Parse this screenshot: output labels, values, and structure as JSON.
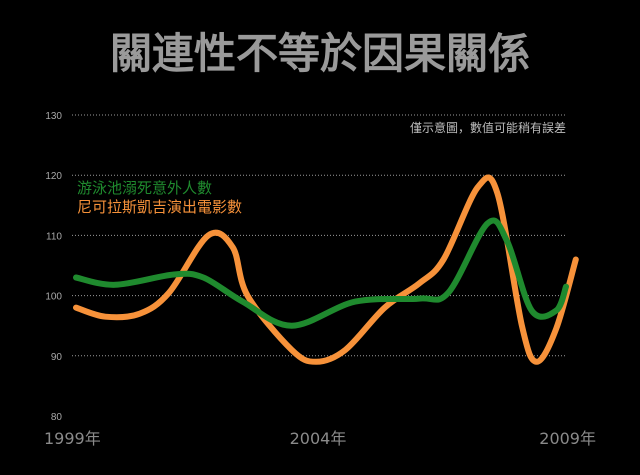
{
  "chart_data": {
    "type": "line",
    "title": "關連性不等於因果關係",
    "note": "僅示意圖，數值可能稍有誤差",
    "xlabel": "",
    "ylabel": "",
    "x_ticks": [
      "1999年",
      "2004年",
      "2009年"
    ],
    "ylim": [
      80,
      130
    ],
    "y_ticks": [
      80,
      90,
      100,
      110,
      120,
      130
    ],
    "grid": true,
    "legend_position": "upper-left",
    "series": [
      {
        "name": "游泳池溺死意外人數",
        "color": "#1f8a2e",
        "points": [
          [
            1999.0,
            103
          ],
          [
            1999.8,
            101.8
          ],
          [
            2001.0,
            103.5
          ],
          [
            2001.6,
            103
          ],
          [
            2002.4,
            99
          ],
          [
            2003.4,
            95
          ],
          [
            2004.7,
            99
          ],
          [
            2006.0,
            99.5
          ],
          [
            2006.6,
            100.5
          ],
          [
            2007.4,
            112
          ],
          [
            2007.8,
            109
          ],
          [
            2008.3,
            97.5
          ],
          [
            2008.8,
            97.5
          ],
          [
            2009.0,
            101.5
          ]
        ]
      },
      {
        "name": "尼可拉斯凱吉演出電影數",
        "color": "#f7923a",
        "points": [
          [
            1999.0,
            98
          ],
          [
            1999.6,
            96.5
          ],
          [
            2000.3,
            97
          ],
          [
            2000.9,
            100.5
          ],
          [
            2001.7,
            110
          ],
          [
            2002.2,
            108
          ],
          [
            2002.5,
            100
          ],
          [
            2003.4,
            91
          ],
          [
            2003.9,
            89
          ],
          [
            2004.5,
            91
          ],
          [
            2005.3,
            98
          ],
          [
            2006.0,
            102
          ],
          [
            2006.5,
            106
          ],
          [
            2007.2,
            118
          ],
          [
            2007.6,
            117
          ],
          [
            2008.1,
            95
          ],
          [
            2008.4,
            89
          ],
          [
            2008.8,
            94.5
          ],
          [
            2009.2,
            106
          ]
        ]
      }
    ]
  }
}
